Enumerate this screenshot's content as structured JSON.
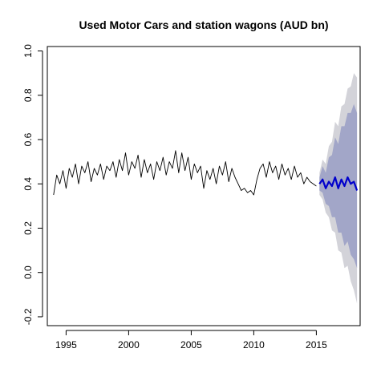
{
  "chart_data": {
    "type": "line",
    "title": "Used Motor Cars and station wagons (AUD bn)",
    "xlabel": "",
    "ylabel": "",
    "xlim": [
      1993.5,
      2018.5
    ],
    "ylim": [
      -0.24,
      1.02
    ],
    "x_ticks": [
      1995,
      2000,
      2005,
      2010,
      2015
    ],
    "x_tick_labels": [
      "1995",
      "2000",
      "2005",
      "2010",
      "2015"
    ],
    "y_ticks": [
      -0.2,
      0.0,
      0.2,
      0.4,
      0.6,
      0.8,
      1.0
    ],
    "y_tick_labels": [
      "-0.2",
      "0.0",
      "0.2",
      "0.4",
      "0.6",
      "0.8",
      "1.0"
    ],
    "grid": false,
    "colors": {
      "history": "#000000",
      "forecast": "#0000cc",
      "band_95": "#d3d3d9",
      "band_80": "#a2a6c8"
    },
    "series": [
      {
        "role": "history",
        "x": [
          1994.0,
          1994.25,
          1994.5,
          1994.75,
          1995.0,
          1995.25,
          1995.5,
          1995.75,
          1996.0,
          1996.25,
          1996.5,
          1996.75,
          1997.0,
          1997.25,
          1997.5,
          1997.75,
          1998.0,
          1998.25,
          1998.5,
          1998.75,
          1999.0,
          1999.25,
          1999.5,
          1999.75,
          2000.0,
          2000.25,
          2000.5,
          2000.75,
          2001.0,
          2001.25,
          2001.5,
          2001.75,
          2002.0,
          2002.25,
          2002.5,
          2002.75,
          2003.0,
          2003.25,
          2003.5,
          2003.75,
          2004.0,
          2004.25,
          2004.5,
          2004.75,
          2005.0,
          2005.25,
          2005.5,
          2005.75,
          2006.0,
          2006.25,
          2006.5,
          2006.75,
          2007.0,
          2007.25,
          2007.5,
          2007.75,
          2008.0,
          2008.25,
          2008.5,
          2008.75,
          2009.0,
          2009.25,
          2009.5,
          2009.75,
          2010.0,
          2010.25,
          2010.5,
          2010.75,
          2011.0,
          2011.25,
          2011.5,
          2011.75,
          2012.0,
          2012.25,
          2012.5,
          2012.75,
          2013.0,
          2013.25,
          2013.5,
          2013.75,
          2014.0,
          2014.25,
          2014.5,
          2014.75,
          2015.0
        ],
        "values": [
          0.35,
          0.44,
          0.4,
          0.46,
          0.38,
          0.47,
          0.43,
          0.49,
          0.4,
          0.48,
          0.45,
          0.5,
          0.41,
          0.47,
          0.44,
          0.49,
          0.42,
          0.48,
          0.46,
          0.5,
          0.43,
          0.51,
          0.46,
          0.54,
          0.44,
          0.5,
          0.47,
          0.53,
          0.43,
          0.51,
          0.45,
          0.49,
          0.42,
          0.5,
          0.46,
          0.52,
          0.44,
          0.5,
          0.47,
          0.55,
          0.45,
          0.54,
          0.46,
          0.52,
          0.42,
          0.49,
          0.45,
          0.48,
          0.38,
          0.46,
          0.42,
          0.47,
          0.4,
          0.48,
          0.44,
          0.5,
          0.41,
          0.47,
          0.43,
          0.4,
          0.37,
          0.38,
          0.36,
          0.37,
          0.35,
          0.42,
          0.47,
          0.49,
          0.43,
          0.5,
          0.45,
          0.48,
          0.42,
          0.49,
          0.44,
          0.47,
          0.42,
          0.48,
          0.43,
          0.45,
          0.4,
          0.43,
          0.41,
          0.4,
          0.39
        ]
      },
      {
        "role": "forecast",
        "x": [
          2015.25,
          2015.5,
          2015.75,
          2016.0,
          2016.25,
          2016.5,
          2016.75,
          2017.0,
          2017.25,
          2017.5,
          2017.75,
          2018.0,
          2018.25
        ],
        "values": [
          0.4,
          0.42,
          0.38,
          0.41,
          0.39,
          0.43,
          0.38,
          0.42,
          0.39,
          0.43,
          0.4,
          0.41,
          0.37
        ]
      }
    ],
    "band_x": [
      2015.25,
      2015.5,
      2015.75,
      2016.0,
      2016.25,
      2016.5,
      2016.75,
      2017.0,
      2017.25,
      2017.5,
      2017.75,
      2018.0,
      2018.25
    ],
    "band_80": {
      "lower": [
        0.37,
        0.36,
        0.31,
        0.3,
        0.25,
        0.25,
        0.18,
        0.18,
        0.12,
        0.14,
        0.08,
        0.06,
        0.02
      ],
      "upper": [
        0.43,
        0.48,
        0.45,
        0.52,
        0.53,
        0.61,
        0.58,
        0.66,
        0.66,
        0.72,
        0.72,
        0.76,
        0.72
      ]
    },
    "band_95": {
      "lower": [
        0.35,
        0.33,
        0.27,
        0.25,
        0.19,
        0.18,
        0.1,
        0.09,
        0.02,
        0.03,
        -0.04,
        -0.08,
        -0.14
      ],
      "upper": [
        0.45,
        0.51,
        0.49,
        0.57,
        0.59,
        0.68,
        0.66,
        0.75,
        0.76,
        0.83,
        0.84,
        0.9,
        0.88
      ]
    }
  }
}
